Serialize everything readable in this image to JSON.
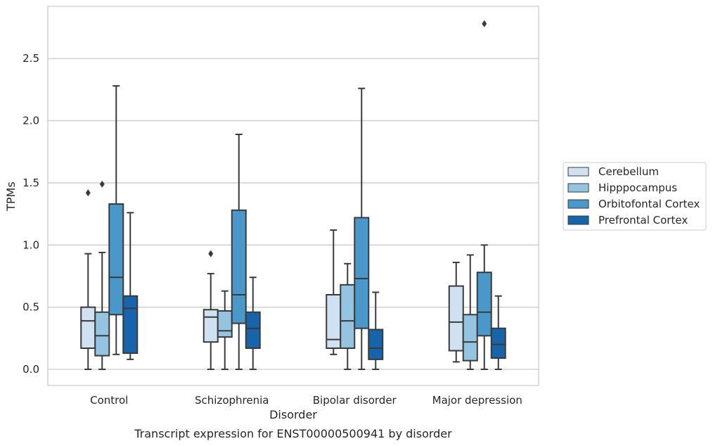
{
  "chart_data": {
    "type": "boxplot",
    "title": "",
    "caption": "Transcript expression for ENST00000500941 by disorder",
    "xlabel": "Disorder",
    "ylabel": "TPMs",
    "ylim": [
      -0.13,
      2.92
    ],
    "yticks": [
      0.0,
      0.5,
      1.0,
      1.5,
      2.0,
      2.5
    ],
    "ytick_labels": [
      "0.0",
      "0.5",
      "1.0",
      "1.5",
      "2.0",
      "2.5"
    ],
    "grid": "horizontal",
    "legend_position": "right",
    "categories": [
      "Control",
      "Schizophrenia",
      "Bipolar disorder",
      "Major depression"
    ],
    "series": [
      {
        "name": "Cerebellum",
        "color": "#d0e1f2",
        "boxes": [
          {
            "whislo": 0.0,
            "q1": 0.17,
            "med": 0.39,
            "q3": 0.5,
            "whishi": 0.93,
            "fliers": [
              1.42
            ]
          },
          {
            "whislo": 0.0,
            "q1": 0.22,
            "med": 0.42,
            "q3": 0.48,
            "whishi": 0.77,
            "fliers": [
              0.93
            ]
          },
          {
            "whislo": 0.12,
            "q1": 0.17,
            "med": 0.24,
            "q3": 0.6,
            "whishi": 1.12,
            "fliers": []
          },
          {
            "whislo": 0.06,
            "q1": 0.15,
            "med": 0.38,
            "q3": 0.67,
            "whishi": 0.86,
            "fliers": []
          }
        ]
      },
      {
        "name": "Hipppocampus",
        "color": "#94c4df",
        "boxes": [
          {
            "whislo": 0.0,
            "q1": 0.11,
            "med": 0.27,
            "q3": 0.46,
            "whishi": 0.94,
            "fliers": [
              1.49
            ]
          },
          {
            "whislo": 0.0,
            "q1": 0.26,
            "med": 0.31,
            "q3": 0.47,
            "whishi": 0.63,
            "fliers": []
          },
          {
            "whislo": 0.0,
            "q1": 0.17,
            "med": 0.39,
            "q3": 0.68,
            "whishi": 0.85,
            "fliers": []
          },
          {
            "whislo": 0.0,
            "q1": 0.07,
            "med": 0.22,
            "q3": 0.44,
            "whishi": 0.92,
            "fliers": []
          }
        ]
      },
      {
        "name": "Orbitofontal Cortex",
        "color": "#4a98c9",
        "boxes": [
          {
            "whislo": 0.12,
            "q1": 0.44,
            "med": 0.74,
            "q3": 1.33,
            "whishi": 2.28,
            "fliers": []
          },
          {
            "whislo": 0.0,
            "q1": 0.37,
            "med": 0.6,
            "q3": 1.28,
            "whishi": 1.89,
            "fliers": []
          },
          {
            "whislo": 0.0,
            "q1": 0.33,
            "med": 0.73,
            "q3": 1.22,
            "whishi": 2.26,
            "fliers": []
          },
          {
            "whislo": 0.0,
            "q1": 0.27,
            "med": 0.46,
            "q3": 0.78,
            "whishi": 1.0,
            "fliers": [
              2.78
            ]
          }
        ]
      },
      {
        "name": "Prefrontal Cortex",
        "color": "#1764ab",
        "boxes": [
          {
            "whislo": 0.08,
            "q1": 0.13,
            "med": 0.49,
            "q3": 0.59,
            "whishi": 1.26,
            "fliers": []
          },
          {
            "whislo": 0.0,
            "q1": 0.17,
            "med": 0.33,
            "q3": 0.46,
            "whishi": 0.74,
            "fliers": []
          },
          {
            "whislo": 0.0,
            "q1": 0.08,
            "med": 0.17,
            "q3": 0.32,
            "whishi": 0.62,
            "fliers": []
          },
          {
            "whislo": 0.0,
            "q1": 0.09,
            "med": 0.2,
            "q3": 0.33,
            "whishi": 0.59,
            "fliers": []
          }
        ]
      }
    ]
  }
}
